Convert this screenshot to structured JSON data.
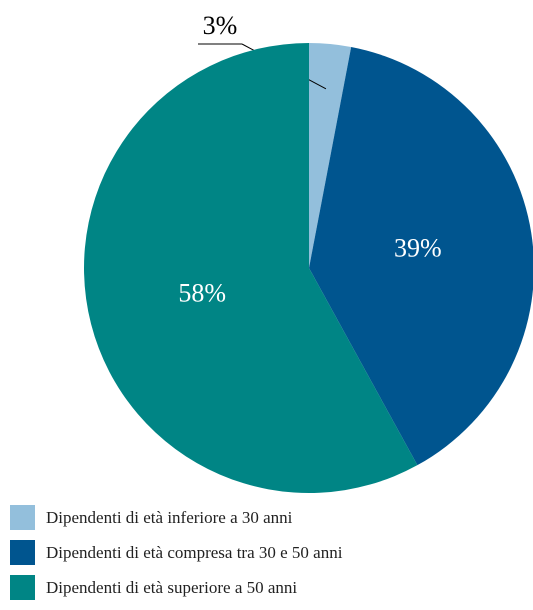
{
  "chart_data": {
    "type": "pie",
    "categories": [
      "Dipendenti di età inferiore a 30 anni",
      "Dipendenti di età compresa tra 30 e 50 anni",
      "Dipendenti di età superiore a 50 anni"
    ],
    "values": [
      3,
      39,
      58
    ],
    "value_labels": [
      "3%",
      "39%",
      "58%"
    ],
    "colors": [
      "#93bfdc",
      "#00558f",
      "#008585"
    ]
  }
}
